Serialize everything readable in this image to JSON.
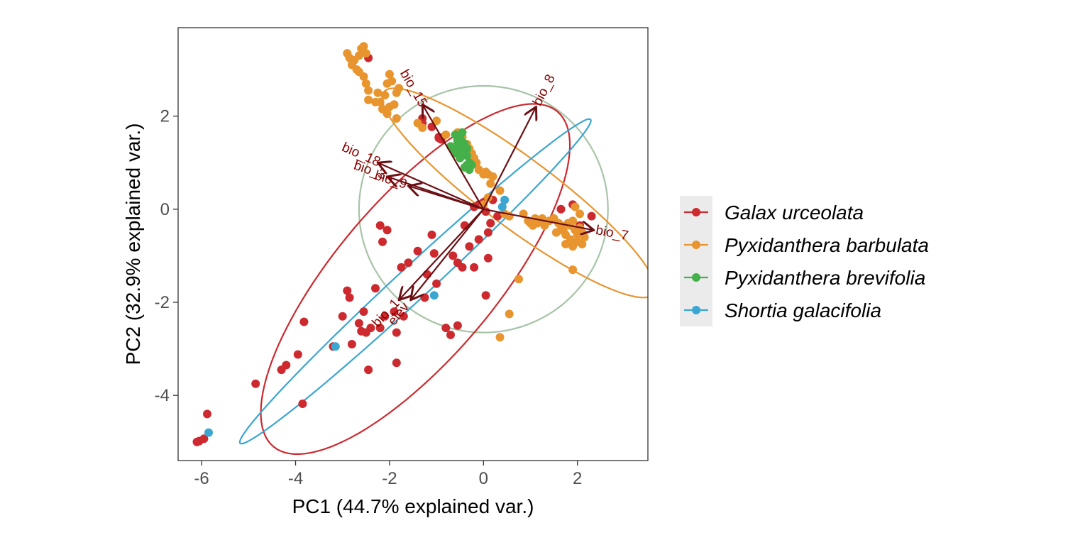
{
  "chart_data": {
    "type": "scatter",
    "subtype": "pca-biplot",
    "title": "",
    "xlabel": "PC1 (44.7% explained var.)",
    "ylabel": "PC2 (32.9% explained var.)",
    "xlim": [
      -6.5,
      3.5
    ],
    "ylim": [
      -5.4,
      3.9
    ],
    "xticks": [
      -6,
      -4,
      -2,
      0,
      2
    ],
    "yticks": [
      -4,
      -2,
      0,
      2
    ],
    "grid": false,
    "legend_position": "right",
    "correlation_circle": {
      "center": [
        0,
        0
      ],
      "radius": 2.65,
      "color": "#a8c4a8"
    },
    "series": [
      {
        "name": "Galax urceolata",
        "color": "#cc2a2f",
        "points": [
          [
            -6.1,
            -5.0
          ],
          [
            -6.05,
            -4.98
          ],
          [
            -5.95,
            -4.93
          ],
          [
            -5.88,
            -4.4
          ],
          [
            -4.85,
            -3.75
          ],
          [
            -4.3,
            -3.45
          ],
          [
            -4.2,
            -3.35
          ],
          [
            -3.85,
            -4.18
          ],
          [
            -3.82,
            -2.42
          ],
          [
            -3.95,
            -3.12
          ],
          [
            -3.2,
            -2.95
          ],
          [
            -3.0,
            -2.3
          ],
          [
            -2.9,
            -1.75
          ],
          [
            -2.85,
            -1.9
          ],
          [
            -2.8,
            -2.9
          ],
          [
            -2.65,
            -2.45
          ],
          [
            -2.6,
            -2.62
          ],
          [
            -2.5,
            -2.65
          ],
          [
            -2.45,
            -3.45
          ],
          [
            -2.4,
            -2.55
          ],
          [
            -2.55,
            -2.2
          ],
          [
            -2.3,
            -1.7
          ],
          [
            -2.2,
            -2.55
          ],
          [
            -2.15,
            -0.7
          ],
          [
            -2.2,
            -0.35
          ],
          [
            -2.05,
            -0.45
          ],
          [
            -2.1,
            -2.3
          ],
          [
            -1.9,
            -2.2
          ],
          [
            -1.85,
            -2.65
          ],
          [
            -1.85,
            -3.3
          ],
          [
            -1.75,
            -1.25
          ],
          [
            -1.7,
            -2.3
          ],
          [
            -1.6,
            -1.15
          ],
          [
            -1.4,
            -0.9
          ],
          [
            -1.25,
            -1.9
          ],
          [
            -1.2,
            -1.4
          ],
          [
            -1.1,
            -0.55
          ],
          [
            -1.05,
            -0.95
          ],
          [
            -1.0,
            -1.6
          ],
          [
            -0.8,
            -2.55
          ],
          [
            -0.7,
            -2.7
          ],
          [
            -0.65,
            -1.0
          ],
          [
            -0.55,
            -2.5
          ],
          [
            -0.55,
            -1.15
          ],
          [
            -0.45,
            -1.25
          ],
          [
            -0.4,
            -0.35
          ],
          [
            -0.3,
            -0.8
          ],
          [
            -0.2,
            -1.25
          ],
          [
            -0.1,
            -0.65
          ],
          [
            0.1,
            -0.5
          ],
          [
            0.15,
            -0.3
          ],
          [
            0.1,
            -1.05
          ],
          [
            0.05,
            -1.85
          ],
          [
            -0.2,
            0.05
          ],
          [
            -0.1,
            0.1
          ],
          [
            0.0,
            0.15
          ],
          [
            0.05,
            -0.05
          ],
          [
            0.2,
            0.2
          ],
          [
            0.3,
            -0.15
          ],
          [
            1.65,
            0.0
          ],
          [
            1.9,
            0.1
          ],
          [
            2.05,
            -0.35
          ],
          [
            2.3,
            -0.15
          ],
          [
            -1.3,
            1.95
          ],
          [
            -1.3,
            1.85
          ],
          [
            -1.1,
            1.77
          ],
          [
            -0.95,
            1.55
          ],
          [
            -0.9,
            1.5
          ],
          [
            -0.95,
            1.53
          ],
          [
            -0.92,
            1.52
          ],
          [
            -2.45,
            3.25
          ]
        ]
      },
      {
        "name": "Pyxidanthera barbulata",
        "color": "#e8952f",
        "points": [
          [
            -2.9,
            3.35
          ],
          [
            -2.85,
            3.25
          ],
          [
            -2.8,
            3.1
          ],
          [
            -2.75,
            3.2
          ],
          [
            -2.7,
            3.0
          ],
          [
            -2.65,
            3.3
          ],
          [
            -2.6,
            3.45
          ],
          [
            -2.55,
            3.5
          ],
          [
            -2.5,
            3.35
          ],
          [
            -2.65,
            2.95
          ],
          [
            -2.55,
            2.85
          ],
          [
            -2.5,
            2.7
          ],
          [
            -2.45,
            2.55
          ],
          [
            -2.45,
            2.35
          ],
          [
            -2.3,
            2.3
          ],
          [
            -2.2,
            2.3
          ],
          [
            -2.25,
            2.5
          ],
          [
            -2.1,
            2.45
          ],
          [
            -2.05,
            2.7
          ],
          [
            -1.95,
            2.75
          ],
          [
            -2.0,
            2.9
          ],
          [
            -1.85,
            2.5
          ],
          [
            -1.8,
            2.6
          ],
          [
            -2.15,
            2.15
          ],
          [
            -2.05,
            2.05
          ],
          [
            -2.0,
            2.2
          ],
          [
            -1.9,
            2.25
          ],
          [
            -1.85,
            1.95
          ],
          [
            -1.4,
            1.85
          ],
          [
            -1.3,
            1.75
          ],
          [
            -1.0,
            1.9
          ],
          [
            -0.8,
            1.6
          ],
          [
            -0.55,
            1.65
          ],
          [
            -0.45,
            1.55
          ],
          [
            -0.35,
            1.4
          ],
          [
            -0.3,
            1.3
          ],
          [
            -0.25,
            1.2
          ],
          [
            -0.2,
            1.1
          ],
          [
            -0.15,
            1.0
          ],
          [
            -0.1,
            0.85
          ],
          [
            0.0,
            0.75
          ],
          [
            0.1,
            0.75
          ],
          [
            0.05,
            0.8
          ],
          [
            0.2,
            0.7
          ],
          [
            0.15,
            0.55
          ],
          [
            0.1,
            0.25
          ],
          [
            0.35,
            0.4
          ],
          [
            0.45,
            -0.1
          ],
          [
            0.55,
            -0.15
          ],
          [
            0.85,
            -0.1
          ],
          [
            0.95,
            -0.25
          ],
          [
            1.0,
            -0.3
          ],
          [
            1.05,
            -0.35
          ],
          [
            1.1,
            -0.2
          ],
          [
            1.15,
            -0.3
          ],
          [
            1.2,
            -0.25
          ],
          [
            1.25,
            -0.2
          ],
          [
            1.3,
            -0.35
          ],
          [
            1.4,
            -0.25
          ],
          [
            1.5,
            -0.2
          ],
          [
            1.6,
            -0.3
          ],
          [
            1.65,
            -0.35
          ],
          [
            1.7,
            -0.45
          ],
          [
            1.75,
            -0.55
          ],
          [
            1.8,
            -0.3
          ],
          [
            1.85,
            -0.35
          ],
          [
            1.9,
            -0.25
          ],
          [
            1.95,
            -0.45
          ],
          [
            2.0,
            -0.55
          ],
          [
            2.05,
            -0.4
          ],
          [
            2.1,
            -0.5
          ],
          [
            2.15,
            -0.6
          ],
          [
            1.85,
            -0.65
          ],
          [
            1.75,
            -0.75
          ],
          [
            1.9,
            -0.8
          ],
          [
            2.0,
            -0.7
          ],
          [
            2.1,
            -0.75
          ],
          [
            1.65,
            -0.45
          ],
          [
            1.55,
            -0.5
          ],
          [
            1.95,
            0.05
          ],
          [
            2.05,
            -0.1
          ],
          [
            1.9,
            -1.3
          ],
          [
            0.75,
            -1.5
          ],
          [
            0.55,
            -2.25
          ],
          [
            0.35,
            -2.75
          ],
          [
            0.0,
            0.1
          ]
        ]
      },
      {
        "name": "Pyxidanthera brevifolia",
        "color": "#45b04a",
        "points": [
          [
            -0.6,
            1.6
          ],
          [
            -0.55,
            1.5
          ],
          [
            -0.5,
            1.55
          ],
          [
            -0.45,
            1.65
          ],
          [
            -0.45,
            1.45
          ],
          [
            -0.4,
            1.4
          ],
          [
            -0.5,
            1.35
          ],
          [
            -0.55,
            1.25
          ],
          [
            -0.6,
            1.2
          ],
          [
            -0.65,
            1.3
          ],
          [
            -0.35,
            1.3
          ],
          [
            -0.4,
            1.2
          ],
          [
            -0.45,
            1.15
          ],
          [
            -0.5,
            1.1
          ],
          [
            -0.35,
            1.15
          ],
          [
            -0.3,
            1.0
          ],
          [
            -0.35,
            0.95
          ],
          [
            -0.4,
            0.9
          ],
          [
            -0.25,
            0.95
          ],
          [
            -0.3,
            0.85
          ],
          [
            -0.55,
            1.45
          ],
          [
            -0.7,
            1.35
          ]
        ]
      },
      {
        "name": "Shortia galacifolia",
        "color": "#3aa6d1",
        "points": [
          [
            -5.85,
            -4.8
          ],
          [
            -3.15,
            -2.95
          ],
          [
            -1.05,
            -1.85
          ],
          [
            0.45,
            0.2
          ],
          [
            0.4,
            0.05
          ]
        ]
      }
    ],
    "ellipses": [
      {
        "name": "Galax urceolata",
        "center": [
          -1.45,
          -1.5
        ],
        "semi_major": 4.7,
        "semi_minor": 1.7,
        "angle_deg": 50
      },
      {
        "name": "Pyxidanthera barbulata",
        "center": [
          0.75,
          0.35
        ],
        "semi_major": 3.6,
        "semi_minor": 0.75,
        "angle_deg": -37
      },
      {
        "name": "Shortia galacifolia",
        "center": [
          -1.45,
          -1.55
        ],
        "semi_major": 5.1,
        "semi_minor": 0.35,
        "angle_deg": 43
      }
    ],
    "arrows": [
      {
        "label": "bio_8",
        "x": 1.12,
        "y": 2.2
      },
      {
        "label": "bio_15",
        "x": -1.3,
        "y": 2.25
      },
      {
        "label": "bio_18",
        "x": -2.25,
        "y": 1.0
      },
      {
        "label": "bio_3",
        "x": -2.05,
        "y": 0.7
      },
      {
        "label": "bio_9",
        "x": -1.6,
        "y": 0.5
      },
      {
        "label": "bio_7",
        "x": 2.35,
        "y": -0.45
      },
      {
        "label": "elev",
        "x": -1.55,
        "y": -1.95
      },
      {
        "label": "bio_1",
        "x": -1.8,
        "y": -1.95
      }
    ],
    "arrow_color": "#6b0f14"
  }
}
